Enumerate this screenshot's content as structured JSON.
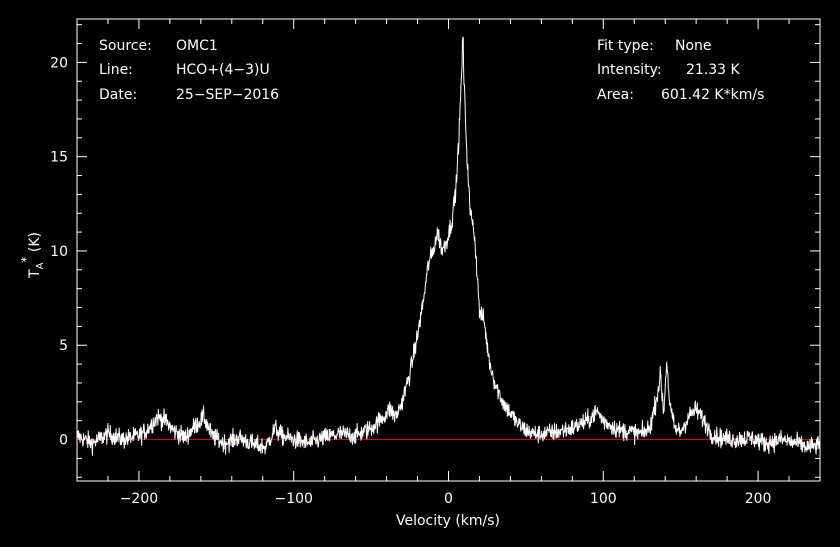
{
  "header_left": [
    {
      "key": "Source:",
      "value": "OMC1"
    },
    {
      "key": "Line:",
      "value": "HCO+(4−3)U"
    },
    {
      "key": "Date:",
      "value": "25−SEP−2016"
    }
  ],
  "header_right": [
    {
      "key": "Fit type:",
      "value": "None"
    },
    {
      "key": "Intensity:",
      "value": "21.33 K"
    },
    {
      "key": "Area:",
      "value": "601.42 K*km/s"
    }
  ],
  "colors": {
    "background": "#000000",
    "trace": "#ffffff",
    "baseline": "#cc0000",
    "axes": "#ffffff"
  },
  "chart_data": {
    "type": "line",
    "xlabel": "Velocity (km/s)",
    "ylabel": "T",
    "ylabel_sub": "A",
    "ylabel_sup": "*",
    "ylabel_unit": " (K)",
    "xlim": [
      -240,
      240
    ],
    "ylim": [
      -2.2,
      22.3
    ],
    "xticks": [
      -200,
      -100,
      0,
      100,
      200
    ],
    "xtick_labels": [
      "−200",
      "−100",
      "0",
      "100",
      "200"
    ],
    "yticks": [
      0,
      5,
      10,
      15,
      20
    ],
    "ytick_labels": [
      "0",
      "5",
      "10",
      "15",
      "20"
    ],
    "baseline": 0,
    "series": [
      {
        "points": [
          [
            -240,
            0.2
          ],
          [
            -230,
            -0.2
          ],
          [
            -220,
            0.3
          ],
          [
            -210,
            0.0
          ],
          [
            -200,
            0.2
          ],
          [
            -195,
            0.5
          ],
          [
            -188,
            1.2
          ],
          [
            -183,
            1.0
          ],
          [
            -178,
            0.5
          ],
          [
            -170,
            0.1
          ],
          [
            -165,
            0.6
          ],
          [
            -158,
            1.2
          ],
          [
            -153,
            0.2
          ],
          [
            -145,
            -0.2
          ],
          [
            -135,
            0.1
          ],
          [
            -125,
            -0.3
          ],
          [
            -118,
            -0.4
          ],
          [
            -112,
            0.6
          ],
          [
            -108,
            0.2
          ],
          [
            -100,
            0.0
          ],
          [
            -90,
            -0.2
          ],
          [
            -80,
            0.1
          ],
          [
            -70,
            0.3
          ],
          [
            -60,
            0.2
          ],
          [
            -50,
            0.6
          ],
          [
            -42,
            1.2
          ],
          [
            -38,
            1.6
          ],
          [
            -34,
            1.2
          ],
          [
            -30,
            2.0
          ],
          [
            -25,
            3.5
          ],
          [
            -20,
            5.5
          ],
          [
            -16,
            7.5
          ],
          [
            -13,
            9.3
          ],
          [
            -10,
            10.0
          ],
          [
            -7,
            11.0
          ],
          [
            -4,
            10.0
          ],
          [
            -1,
            10.6
          ],
          [
            2,
            11.5
          ],
          [
            5,
            13.5
          ],
          [
            7,
            16.5
          ],
          [
            8.5,
            19.5
          ],
          [
            9.3,
            21.33
          ],
          [
            10,
            19.0
          ],
          [
            12,
            15.0
          ],
          [
            14,
            12.0
          ],
          [
            16,
            11.5
          ],
          [
            18,
            9.5
          ],
          [
            20,
            6.8
          ],
          [
            23,
            6.3
          ],
          [
            26,
            4.3
          ],
          [
            30,
            3.0
          ],
          [
            35,
            2.0
          ],
          [
            40,
            1.4
          ],
          [
            45,
            0.8
          ],
          [
            50,
            0.5
          ],
          [
            55,
            0.3
          ],
          [
            60,
            0.3
          ],
          [
            70,
            0.4
          ],
          [
            80,
            0.6
          ],
          [
            90,
            1.0
          ],
          [
            96,
            1.5
          ],
          [
            100,
            1.0
          ],
          [
            110,
            0.5
          ],
          [
            118,
            0.4
          ],
          [
            125,
            0.3
          ],
          [
            130,
            0.6
          ],
          [
            134,
            2.0
          ],
          [
            137,
            3.4
          ],
          [
            139,
            1.4
          ],
          [
            141,
            4.2
          ],
          [
            143,
            1.8
          ],
          [
            146,
            0.6
          ],
          [
            150,
            0.4
          ],
          [
            155,
            1.2
          ],
          [
            160,
            1.6
          ],
          [
            165,
            1.0
          ],
          [
            170,
            0.3
          ],
          [
            175,
            0.1
          ],
          [
            185,
            0.0
          ],
          [
            195,
            0.1
          ],
          [
            205,
            -0.2
          ],
          [
            215,
            0.0
          ],
          [
            225,
            -0.2
          ],
          [
            232,
            -0.4
          ],
          [
            240,
            -0.3
          ]
        ]
      }
    ],
    "noise_sigma": 0.35
  }
}
